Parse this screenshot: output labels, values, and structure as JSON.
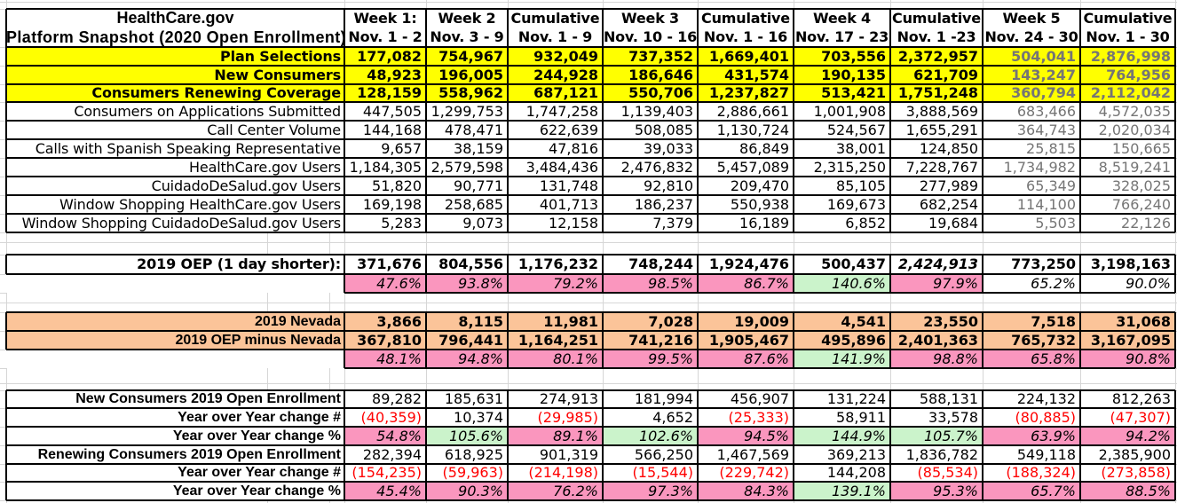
{
  "title": {
    "line1": "HealthCare.gov",
    "line2": "Platform Snapshot (2020 Open Enrollment)"
  },
  "columns": [
    {
      "label": "Week 1:",
      "dates": "Nov. 1 - 2"
    },
    {
      "label": "Week 2",
      "dates": "Nov. 3 - 9"
    },
    {
      "label": "Cumulative",
      "dates": "Nov. 1 - 9"
    },
    {
      "label": "Week 3",
      "dates": "Nov. 10 - 16"
    },
    {
      "label": "Cumulative",
      "dates": "Nov. 1 - 16"
    },
    {
      "label": "Week 4",
      "dates": "Nov. 17 - 23"
    },
    {
      "label": "Cumulative",
      "dates": "Nov. 1 -23"
    },
    {
      "label": "Week 5",
      "dates": "Nov. 24 - 30"
    },
    {
      "label": "Cumulative",
      "dates": "Nov. 1 - 30"
    }
  ],
  "main_rows": [
    {
      "label": "Plan Selections",
      "emphasis": true,
      "fill": "yellow",
      "values": [
        "177,082",
        "754,967",
        "932,049",
        "737,352",
        "1,669,401",
        "703,556",
        "2,372,957",
        "504,041",
        "2,876,998"
      ]
    },
    {
      "label": "New Consumers",
      "emphasis": true,
      "fill": "yellow",
      "values": [
        "48,923",
        "196,005",
        "244,928",
        "186,646",
        "431,574",
        "190,135",
        "621,709",
        "143,247",
        "764,956"
      ]
    },
    {
      "label": "Consumers Renewing Coverage",
      "emphasis": true,
      "fill": "yellow",
      "values": [
        "128,159",
        "558,962",
        "687,121",
        "550,706",
        "1,237,827",
        "513,421",
        "1,751,248",
        "360,794",
        "2,112,042"
      ]
    },
    {
      "label": "Consumers on Applications Submitted",
      "emphasis": false,
      "fill": "none",
      "values": [
        "447,505",
        "1,299,753",
        "1,747,258",
        "1,139,403",
        "2,886,661",
        "1,001,908",
        "3,888,569",
        "683,466",
        "4,572,035"
      ]
    },
    {
      "label": "Call Center Volume",
      "emphasis": false,
      "fill": "none",
      "values": [
        "144,168",
        "478,471",
        "622,639",
        "508,085",
        "1,130,724",
        "524,567",
        "1,655,291",
        "364,743",
        "2,020,034"
      ]
    },
    {
      "label": "Calls with Spanish Speaking Representative",
      "emphasis": false,
      "fill": "none",
      "values": [
        "9,657",
        "38,159",
        "47,816",
        "39,033",
        "86,849",
        "38,001",
        "124,850",
        "25,815",
        "150,665"
      ]
    },
    {
      "label": "HealthCare.gov Users",
      "emphasis": false,
      "fill": "none",
      "values": [
        "1,184,305",
        "2,579,598",
        "3,484,436",
        "2,476,832",
        "5,457,089",
        "2,315,250",
        "7,228,767",
        "1,734,982",
        "8,519,241"
      ]
    },
    {
      "label": "CuidadoDeSalud.gov Users",
      "emphasis": false,
      "fill": "none",
      "values": [
        "51,820",
        "90,771",
        "131,748",
        "92,810",
        "209,470",
        "85,105",
        "277,989",
        "65,349",
        "328,025"
      ]
    },
    {
      "label": "Window Shopping HealthCare.gov Users",
      "emphasis": false,
      "fill": "none",
      "values": [
        "169,198",
        "258,685",
        "401,713",
        "186,237",
        "550,938",
        "169,673",
        "682,254",
        "114,100",
        "766,240"
      ]
    },
    {
      "label": "Window Shopping CuidadoDeSalud.gov Users",
      "emphasis": false,
      "fill": "none",
      "values": [
        "5,283",
        "9,073",
        "12,158",
        "7,379",
        "16,189",
        "6,852",
        "19,684",
        "5,503",
        "22,126"
      ]
    }
  ],
  "oep_2019": {
    "label": "2019 OEP (1 day shorter):",
    "values": [
      "371,676",
      "804,556",
      "1,176,232",
      "748,244",
      "1,924,476",
      "500,437",
      "2,424,913",
      "773,250",
      "3,198,163"
    ],
    "italic_index": 6
  },
  "oep_2019_pct": {
    "values": [
      "47.6%",
      "93.8%",
      "79.2%",
      "98.5%",
      "86.7%",
      "140.6%",
      "97.9%",
      "65.2%",
      "90.0%"
    ],
    "fills": [
      "pink",
      "pink",
      "pink",
      "pink",
      "pink",
      "green",
      "pink",
      "none",
      "none"
    ]
  },
  "nevada_rows": [
    {
      "label": "2019 Nevada",
      "values": [
        "3,866",
        "8,115",
        "11,981",
        "7,028",
        "19,009",
        "4,541",
        "23,550",
        "7,518",
        "31,068"
      ]
    },
    {
      "label": "2019 OEP minus Nevada",
      "values": [
        "367,810",
        "796,441",
        "1,164,251",
        "741,216",
        "1,905,467",
        "495,896",
        "2,401,363",
        "765,732",
        "3,167,095"
      ]
    }
  ],
  "nevada_pct": {
    "values": [
      "48.1%",
      "94.8%",
      "80.1%",
      "99.5%",
      "87.6%",
      "141.9%",
      "98.8%",
      "65.8%",
      "90.8%"
    ],
    "fills": [
      "pink",
      "pink",
      "pink",
      "pink",
      "pink",
      "green",
      "pink",
      "pink",
      "pink"
    ]
  },
  "bottom_rows": [
    {
      "label": "New Consumers 2019 Open Enrollment",
      "type": "plain",
      "values": [
        "89,282",
        "185,631",
        "274,913",
        "181,994",
        "456,907",
        "131,224",
        "588,131",
        "224,132",
        "812,263"
      ]
    },
    {
      "label": "Year over Year change #",
      "type": "change",
      "values": [
        "(40,359)",
        "10,374",
        "(29,985)",
        "4,652",
        "(25,333)",
        "58,911",
        "33,578",
        "(80,885)",
        "(47,307)"
      ]
    },
    {
      "label": "Year over Year change %",
      "type": "pct",
      "values": [
        "54.8%",
        "105.6%",
        "89.1%",
        "102.6%",
        "94.5%",
        "144.9%",
        "105.7%",
        "63.9%",
        "94.2%"
      ],
      "fills": [
        "pink",
        "green",
        "pink",
        "green",
        "pink",
        "green",
        "green",
        "pink",
        "pink"
      ]
    },
    {
      "label": "Renewing Consumers 2019 Open Enrollment",
      "type": "plain",
      "values": [
        "282,394",
        "618,925",
        "901,319",
        "566,250",
        "1,467,569",
        "369,213",
        "1,836,782",
        "549,118",
        "2,385,900"
      ]
    },
    {
      "label": "Year over Year change #",
      "type": "change",
      "values": [
        "(154,235)",
        "(59,963)",
        "(214,198)",
        "(15,544)",
        "(229,742)",
        "144,208",
        "(85,534)",
        "(188,324)",
        "(273,858)"
      ]
    },
    {
      "label": "Year over Year change %",
      "type": "pct",
      "values": [
        "45.4%",
        "90.3%",
        "76.2%",
        "97.3%",
        "84.3%",
        "139.1%",
        "95.3%",
        "65.7%",
        "88.5%"
      ],
      "fills": [
        "pink",
        "pink",
        "pink",
        "pink",
        "pink",
        "green",
        "pink",
        "pink",
        "pink"
      ]
    }
  ],
  "colors": {
    "yellow": "#FFFF00",
    "pink": "#FA96BE",
    "green": "#CBF3CB",
    "orange": "#FBC499",
    "red": "#FF0000",
    "dim_text": "#757575",
    "border": "#000000",
    "gridline": "#D6D6D6"
  }
}
